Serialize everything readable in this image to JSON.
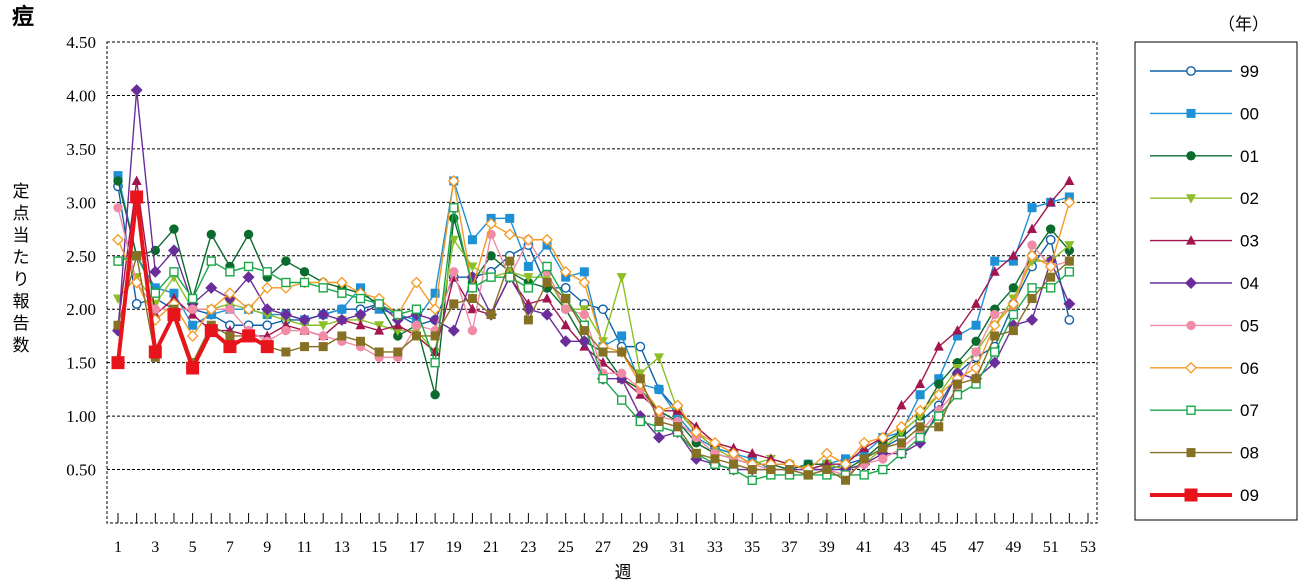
{
  "chart_data": {
    "type": "line",
    "title": "痘",
    "legend_title": "（年）",
    "xlabel": "週",
    "ylabel": "定点当たり報告数",
    "ylim": [
      0,
      4.5
    ],
    "yticks": [
      "0.50",
      "1.00",
      "1.50",
      "2.00",
      "2.50",
      "3.00",
      "3.50",
      "4.00",
      "4.50"
    ],
    "xlim": [
      1,
      53
    ],
    "xtick_labels": [
      1,
      3,
      5,
      7,
      9,
      11,
      13,
      15,
      17,
      19,
      21,
      23,
      25,
      27,
      29,
      31,
      33,
      35,
      37,
      39,
      41,
      43,
      45,
      47,
      49,
      51,
      53
    ],
    "grid": "horizontal dashed",
    "legend_position": "right",
    "series": [
      {
        "name": "99",
        "color": "#0d5fa8",
        "marker": "circle-open",
        "values": [
          3.15,
          2.05,
          2.1,
          2.0,
          2.0,
          1.95,
          1.85,
          1.85,
          1.85,
          1.9,
          1.9,
          1.95,
          2.0,
          2.0,
          2.05,
          1.95,
          1.85,
          1.9,
          2.3,
          2.3,
          2.35,
          2.5,
          2.6,
          2.2,
          2.2,
          2.05,
          2.0,
          1.65,
          1.65,
          1.25,
          1.05,
          0.85,
          0.7,
          0.65,
          0.55,
          0.55,
          0.55,
          0.5,
          0.5,
          0.55,
          0.6,
          0.7,
          0.8,
          0.95,
          1.1,
          1.4,
          1.55,
          1.65,
          2.05,
          2.4,
          2.65,
          1.9
        ]
      },
      {
        "name": "00",
        "color": "#1e90d6",
        "marker": "square",
        "values": [
          3.25,
          2.5,
          2.2,
          2.15,
          1.85,
          1.95,
          2.0,
          2.0,
          1.95,
          1.95,
          1.9,
          1.95,
          2.0,
          2.2,
          2.0,
          1.95,
          1.9,
          2.15,
          3.2,
          2.65,
          2.85,
          2.85,
          2.4,
          2.6,
          2.3,
          2.35,
          1.65,
          1.75,
          1.3,
          1.25,
          1.0,
          0.8,
          0.7,
          0.65,
          0.6,
          0.5,
          0.5,
          0.55,
          0.55,
          0.6,
          0.65,
          0.8,
          0.85,
          1.2,
          1.35,
          1.75,
          1.85,
          2.45,
          2.45,
          2.95,
          3.0,
          3.05
        ]
      },
      {
        "name": "01",
        "color": "#0b6b2e",
        "marker": "circle",
        "values": [
          3.2,
          2.5,
          2.55,
          2.75,
          2.1,
          2.7,
          2.4,
          2.7,
          2.3,
          2.45,
          2.35,
          2.25,
          2.2,
          2.15,
          2.05,
          1.75,
          1.85,
          1.2,
          2.85,
          2.25,
          2.5,
          2.35,
          2.25,
          2.2,
          2.0,
          1.7,
          1.6,
          1.35,
          1.25,
          1.05,
          0.95,
          0.75,
          0.65,
          0.6,
          0.55,
          0.55,
          0.5,
          0.55,
          0.55,
          0.5,
          0.6,
          0.75,
          0.85,
          1.0,
          1.3,
          1.5,
          1.7,
          2.0,
          2.2,
          2.5,
          2.75,
          2.55
        ]
      },
      {
        "name": "02",
        "color": "#8cbf26",
        "marker": "triangle-down",
        "values": [
          2.1,
          2.3,
          2.05,
          2.3,
          2.0,
          2.0,
          2.05,
          2.0,
          1.95,
          1.9,
          1.85,
          1.85,
          1.9,
          1.9,
          1.85,
          1.8,
          1.8,
          1.6,
          2.65,
          2.4,
          2.3,
          2.35,
          2.3,
          2.3,
          2.0,
          2.0,
          1.7,
          2.3,
          1.4,
          1.55,
          1.05,
          0.85,
          0.7,
          0.6,
          0.55,
          0.6,
          0.55,
          0.5,
          0.55,
          0.5,
          0.55,
          0.7,
          0.85,
          1.0,
          1.2,
          1.45,
          1.6,
          1.85,
          2.1,
          2.45,
          2.45,
          2.6
        ]
      },
      {
        "name": "03",
        "color": "#a3154e",
        "marker": "triangle",
        "values": [
          1.85,
          3.2,
          1.95,
          2.1,
          1.95,
          1.8,
          1.8,
          1.75,
          1.75,
          1.85,
          1.8,
          1.75,
          1.9,
          1.85,
          1.8,
          1.85,
          1.75,
          1.6,
          2.3,
          2.0,
          1.95,
          2.3,
          2.05,
          2.1,
          1.85,
          1.65,
          1.5,
          1.35,
          1.2,
          1.05,
          1.05,
          0.9,
          0.75,
          0.7,
          0.65,
          0.6,
          0.55,
          0.5,
          0.55,
          0.55,
          0.7,
          0.8,
          1.1,
          1.3,
          1.65,
          1.8,
          2.05,
          2.35,
          2.5,
          2.75,
          3.0,
          3.2
        ]
      },
      {
        "name": "04",
        "color": "#6a2e9c",
        "marker": "diamond",
        "values": [
          1.8,
          4.05,
          2.35,
          2.55,
          2.05,
          2.2,
          2.1,
          2.3,
          2.0,
          1.95,
          1.9,
          1.95,
          1.9,
          1.95,
          2.05,
          1.9,
          1.95,
          1.9,
          1.8,
          2.3,
          1.95,
          2.3,
          2.0,
          1.95,
          1.7,
          1.7,
          1.35,
          1.35,
          1.0,
          0.8,
          0.85,
          0.6,
          0.55,
          0.5,
          0.5,
          0.5,
          0.5,
          0.5,
          0.5,
          0.5,
          0.55,
          0.65,
          0.65,
          0.75,
          1.05,
          1.4,
          1.35,
          1.5,
          1.85,
          1.9,
          2.45,
          2.05
        ]
      },
      {
        "name": "05",
        "color": "#f08ca6",
        "marker": "circle",
        "values": [
          2.95,
          2.25,
          2.0,
          2.0,
          2.0,
          2.0,
          2.0,
          1.8,
          1.7,
          1.8,
          1.8,
          1.75,
          1.7,
          1.65,
          1.55,
          1.55,
          1.85,
          1.8,
          2.35,
          1.8,
          2.7,
          2.3,
          2.65,
          2.35,
          2.0,
          1.95,
          1.4,
          1.4,
          1.25,
          1.0,
          0.95,
          0.8,
          0.65,
          0.6,
          0.55,
          0.5,
          0.5,
          0.45,
          0.5,
          0.45,
          0.55,
          0.6,
          0.7,
          0.85,
          1.05,
          1.25,
          1.6,
          1.95,
          2.0,
          2.6,
          2.4,
          2.45
        ]
      },
      {
        "name": "06",
        "color": "#f59a23",
        "marker": "diamond-open",
        "values": [
          2.65,
          2.25,
          1.9,
          2.05,
          1.75,
          2.0,
          2.15,
          2.0,
          2.2,
          2.2,
          2.25,
          2.25,
          2.25,
          2.15,
          2.1,
          1.95,
          2.25,
          2.0,
          3.2,
          2.2,
          2.8,
          2.7,
          2.65,
          2.65,
          2.35,
          2.25,
          1.65,
          1.6,
          1.3,
          1.05,
          1.1,
          0.85,
          0.75,
          0.65,
          0.55,
          0.55,
          0.55,
          0.5,
          0.65,
          0.55,
          0.75,
          0.8,
          0.9,
          1.05,
          1.2,
          1.35,
          1.45,
          1.85,
          2.05,
          2.5,
          2.4,
          3.0
        ]
      },
      {
        "name": "07",
        "color": "#1aa84a",
        "marker": "square-open",
        "values": [
          2.45,
          2.5,
          2.15,
          2.35,
          2.1,
          2.45,
          2.35,
          2.4,
          2.35,
          2.25,
          2.25,
          2.2,
          2.15,
          2.1,
          2.05,
          1.95,
          2.0,
          1.5,
          2.95,
          2.2,
          2.3,
          2.3,
          2.2,
          2.4,
          2.1,
          1.85,
          1.35,
          1.15,
          0.95,
          0.9,
          0.85,
          0.65,
          0.55,
          0.5,
          0.4,
          0.45,
          0.45,
          0.45,
          0.45,
          0.45,
          0.45,
          0.5,
          0.65,
          0.8,
          1.0,
          1.2,
          1.3,
          1.6,
          1.95,
          2.2,
          2.2,
          2.35
        ]
      },
      {
        "name": "08",
        "color": "#857024",
        "marker": "square",
        "values": [
          1.85,
          2.5,
          1.55,
          2.0,
          1.5,
          1.85,
          1.75,
          1.75,
          1.65,
          1.6,
          1.65,
          1.65,
          1.75,
          1.7,
          1.6,
          1.6,
          1.75,
          1.75,
          2.05,
          2.1,
          1.95,
          2.45,
          1.9,
          2.25,
          2.1,
          1.8,
          1.6,
          1.6,
          1.35,
          0.95,
          0.9,
          0.65,
          0.6,
          0.55,
          0.5,
          0.5,
          0.5,
          0.45,
          0.5,
          0.4,
          0.6,
          0.7,
          0.75,
          0.9,
          0.9,
          1.3,
          1.35,
          1.75,
          1.8,
          2.1,
          2.3,
          2.45
        ]
      },
      {
        "name": "09",
        "color": "#e8141b",
        "marker": "square-big",
        "values": [
          1.5,
          3.05,
          1.6,
          1.95,
          1.45,
          1.8,
          1.65,
          1.75,
          1.65
        ]
      }
    ]
  }
}
